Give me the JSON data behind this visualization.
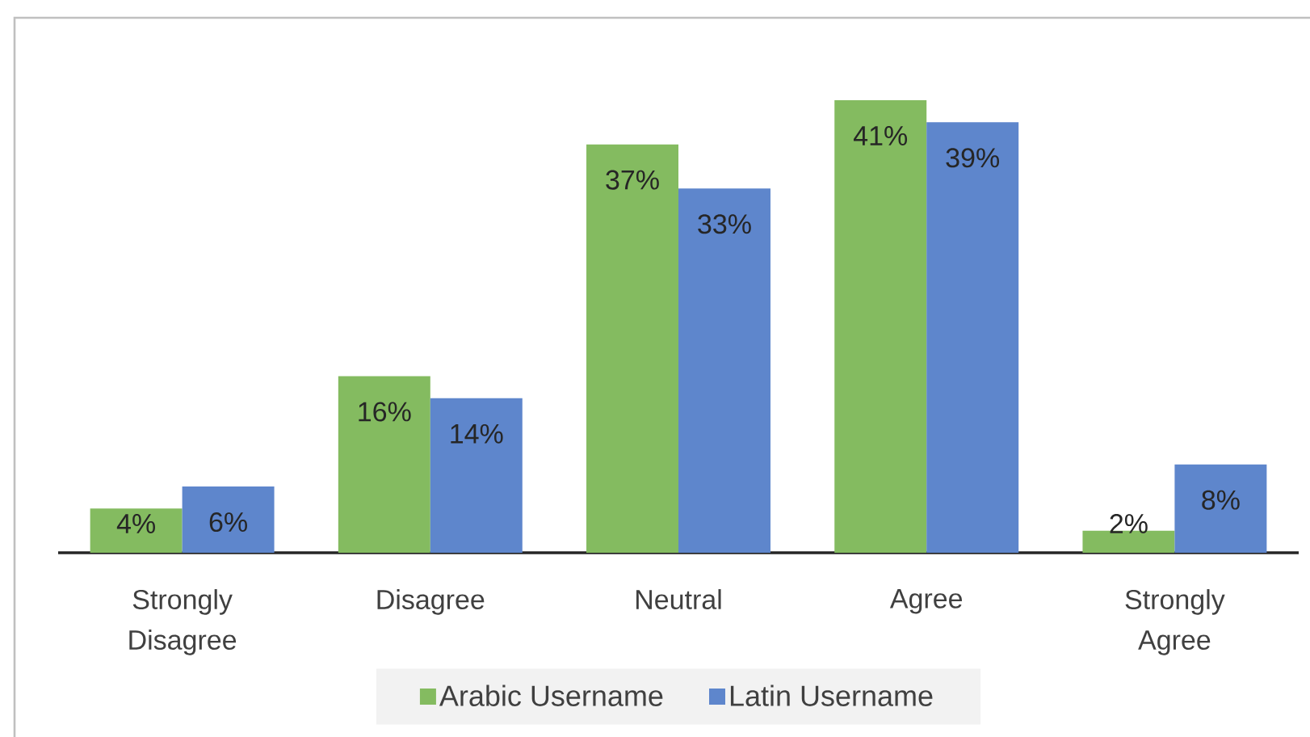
{
  "chart_data": {
    "type": "bar",
    "categories": [
      "Strongly Disagree",
      "Disagree",
      "Neutral",
      "Agree",
      "Strongly Agree"
    ],
    "series": [
      {
        "name": "Arabic Username",
        "color": "#84bb60",
        "values": [
          4,
          16,
          37,
          41,
          2
        ],
        "value_labels": [
          "4%",
          "16%",
          "37%",
          "41%",
          "2%"
        ]
      },
      {
        "name": "Latin Username",
        "color": "#5e86cc",
        "values": [
          6,
          14,
          33,
          39,
          8
        ],
        "value_labels": [
          "6%",
          "14%",
          "33%",
          "39%",
          "8%"
        ]
      }
    ],
    "legend": "bottom",
    "tick_labels": "x"
  }
}
